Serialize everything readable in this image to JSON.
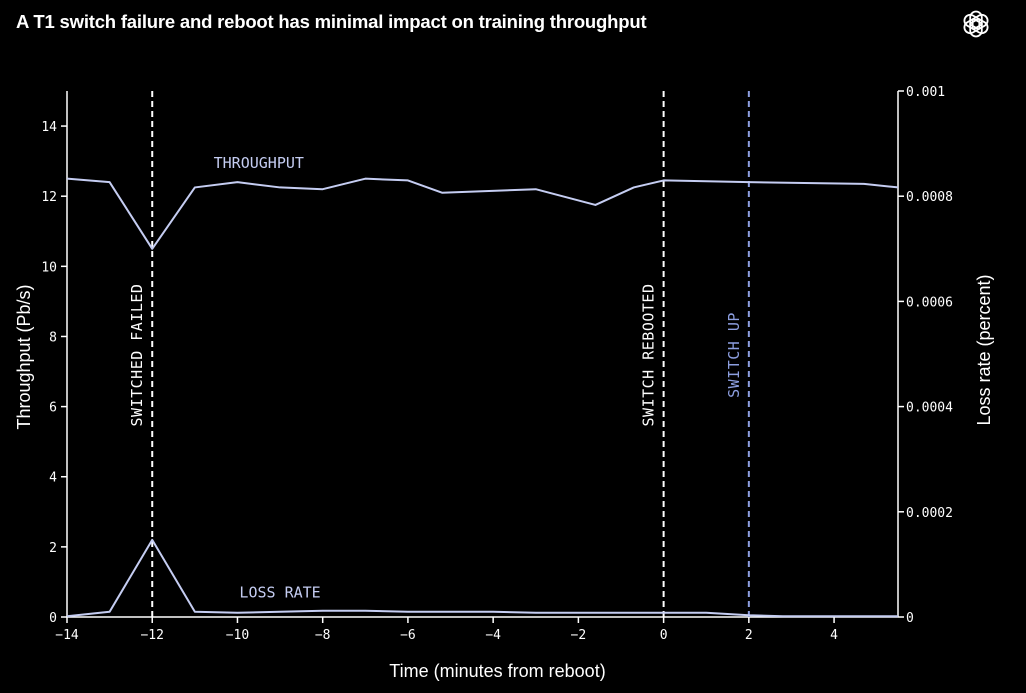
{
  "title": "A T1 switch failure and reboot has minimal impact on training throughput",
  "logo": {
    "icon": "openai-logo-icon"
  },
  "colors": {
    "background": "#000000",
    "axis": "#ffffff",
    "series": "#c5cdf2",
    "switch_up_line": "#8d9fe0"
  },
  "chart_data": {
    "type": "line",
    "title": "A T1 switch failure and reboot has minimal impact on training throughput",
    "xlabel": "Time (minutes from reboot)",
    "ylabel_left": "Throughput (Pb/s)",
    "ylabel_right": "Loss rate (percent)",
    "xlim": [
      -14,
      5.5
    ],
    "ylim_left": [
      0,
      15
    ],
    "ylim_right": [
      0,
      0.001
    ],
    "x_ticks": [
      {
        "value": -14,
        "label": "−14"
      },
      {
        "value": -12,
        "label": "−12"
      },
      {
        "value": -10,
        "label": "−10"
      },
      {
        "value": -8,
        "label": "−8"
      },
      {
        "value": -6,
        "label": "−6"
      },
      {
        "value": -4,
        "label": "−4"
      },
      {
        "value": -2,
        "label": "−2"
      },
      {
        "value": 0,
        "label": "0"
      },
      {
        "value": 2,
        "label": "2"
      },
      {
        "value": 4,
        "label": "4"
      }
    ],
    "y_left_ticks": [
      {
        "value": 0,
        "label": "0"
      },
      {
        "value": 2,
        "label": "2"
      },
      {
        "value": 4,
        "label": "4"
      },
      {
        "value": 6,
        "label": "6"
      },
      {
        "value": 8,
        "label": "8"
      },
      {
        "value": 10,
        "label": "10"
      },
      {
        "value": 12,
        "label": "12"
      },
      {
        "value": 14,
        "label": "14"
      }
    ],
    "y_right_ticks": [
      {
        "value": 0,
        "label": "0"
      },
      {
        "value": 0.0002,
        "label": "0.0002"
      },
      {
        "value": 0.0004,
        "label": "0.0004"
      },
      {
        "value": 0.0006,
        "label": "0.0006"
      },
      {
        "value": 0.0008,
        "label": "0.0008"
      },
      {
        "value": 0.001,
        "label": "0.001"
      }
    ],
    "grid": false,
    "series": [
      {
        "name": "THROUGHPUT",
        "axis": "left",
        "x": [
          -14,
          -13,
          -12,
          -11,
          -10,
          -9,
          -8,
          -7,
          -6,
          -5.2,
          -3,
          -1.6,
          -0.7,
          0,
          2,
          4.7,
          5.5
        ],
        "y": [
          12.5,
          12.4,
          10.5,
          12.25,
          12.4,
          12.25,
          12.2,
          12.5,
          12.45,
          12.1,
          12.2,
          11.75,
          12.25,
          12.45,
          12.4,
          12.35,
          12.25
        ],
        "label_position": {
          "x": -9.5,
          "y": 12.8
        }
      },
      {
        "name": "LOSS RATE",
        "axis": "left",
        "x": [
          -14,
          -13,
          -12,
          -11,
          -10,
          -9,
          -8,
          -7,
          -6,
          -4,
          -3,
          -2,
          -1,
          0,
          1,
          2,
          2.8,
          4,
          5.5
        ],
        "y": [
          0.02,
          0.15,
          2.2,
          0.15,
          0.12,
          0.15,
          0.18,
          0.18,
          0.15,
          0.15,
          0.12,
          0.12,
          0.12,
          0.12,
          0.12,
          0.05,
          0.02,
          0.02,
          0.02
        ],
        "label_position": {
          "x": -9,
          "y": 0.55
        }
      }
    ],
    "annotations": [
      {
        "label": "SWITCHED FAILED",
        "x": -12,
        "color": "#ffffff"
      },
      {
        "label": "SWITCH REBOOTED",
        "x": 0,
        "color": "#ffffff"
      },
      {
        "label": "SWITCH UP",
        "x": 2,
        "color": "#8d9fe0"
      }
    ]
  }
}
